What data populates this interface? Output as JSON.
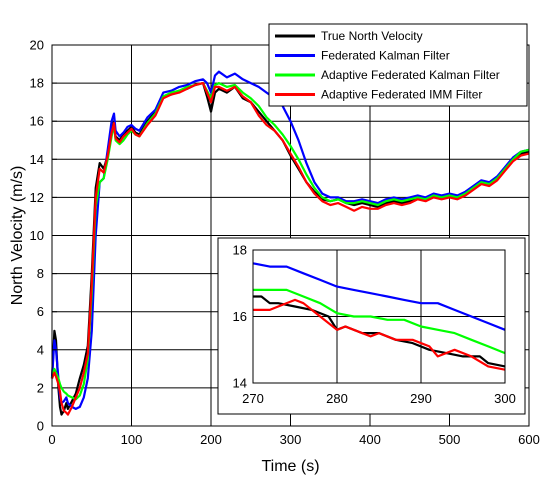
{
  "chart_data": {
    "type": "line",
    "xlabel": "Time (s)",
    "ylabel": "North Velocity (m/s)",
    "xlim": [
      0,
      600
    ],
    "ylim": [
      0,
      20
    ],
    "x_ticks": [
      "0",
      "100",
      "200",
      "300",
      "400",
      "500",
      "600"
    ],
    "y_ticks": [
      "0",
      "2",
      "4",
      "6",
      "8",
      "10",
      "12",
      "14",
      "16",
      "18",
      "20"
    ],
    "grid": true,
    "legend_position": "top-right",
    "series": [
      {
        "name": "True North Velocity",
        "color": "#000000",
        "x": [
          0,
          3,
          5,
          8,
          10,
          12,
          15,
          18,
          20,
          25,
          30,
          35,
          40,
          45,
          50,
          55,
          60,
          65,
          70,
          75,
          78,
          80,
          85,
          90,
          95,
          100,
          105,
          110,
          120,
          130,
          140,
          150,
          160,
          170,
          180,
          190,
          195,
          200,
          205,
          210,
          220,
          230,
          240,
          250,
          260,
          270,
          280,
          290,
          300,
          310,
          320,
          330,
          340,
          350,
          360,
          370,
          380,
          390,
          400,
          410,
          420,
          430,
          440,
          450,
          460,
          470,
          480,
          490,
          500,
          510,
          520,
          530,
          540,
          550,
          560,
          570,
          580,
          590,
          600
        ],
        "y": [
          2.5,
          5.0,
          4.5,
          2.0,
          1.0,
          0.6,
          0.8,
          1.2,
          0.9,
          1.3,
          1.7,
          2.5,
          3.2,
          4.2,
          8.0,
          12.5,
          13.8,
          13.5,
          14.2,
          15.5,
          16.0,
          15.2,
          15.0,
          15.3,
          15.5,
          15.7,
          15.4,
          15.3,
          16.0,
          16.5,
          17.3,
          17.4,
          17.6,
          17.7,
          17.9,
          18.0,
          17.3,
          16.5,
          17.5,
          17.7,
          17.5,
          17.8,
          17.2,
          17.0,
          16.5,
          16.0,
          15.5,
          15.0,
          14.2,
          13.5,
          12.8,
          12.3,
          11.9,
          11.8,
          11.9,
          11.7,
          11.6,
          11.7,
          11.6,
          11.5,
          11.7,
          11.8,
          11.7,
          11.8,
          12.0,
          11.9,
          12.1,
          12.0,
          12.1,
          12.0,
          12.2,
          12.5,
          12.8,
          12.7,
          13.0,
          13.5,
          14.0,
          14.3,
          14.4
        ]
      },
      {
        "name": "Federated Kalman Filter",
        "color": "#0000ff",
        "x": [
          0,
          3,
          5,
          8,
          10,
          12,
          15,
          18,
          20,
          25,
          30,
          35,
          40,
          45,
          50,
          55,
          60,
          65,
          70,
          75,
          78,
          80,
          85,
          90,
          95,
          100,
          105,
          110,
          120,
          130,
          140,
          150,
          160,
          170,
          180,
          190,
          195,
          200,
          205,
          210,
          220,
          230,
          240,
          250,
          260,
          270,
          280,
          290,
          300,
          310,
          320,
          330,
          340,
          350,
          360,
          370,
          380,
          390,
          400,
          410,
          420,
          430,
          440,
          450,
          460,
          470,
          480,
          490,
          500,
          510,
          520,
          530,
          540,
          550,
          560,
          570,
          580,
          590,
          600
        ],
        "y": [
          2.5,
          4.5,
          4.0,
          2.5,
          1.5,
          1.2,
          1.3,
          1.5,
          1.2,
          1.0,
          0.9,
          1.0,
          1.5,
          2.5,
          5.0,
          10.0,
          12.8,
          13.0,
          14.5,
          16.0,
          16.4,
          15.5,
          15.2,
          15.4,
          15.7,
          15.8,
          15.6,
          15.5,
          16.2,
          16.6,
          17.5,
          17.6,
          17.8,
          17.9,
          18.1,
          18.2,
          18.0,
          17.5,
          18.4,
          18.6,
          18.3,
          18.5,
          18.2,
          18.0,
          17.8,
          17.5,
          17.2,
          16.8,
          16.0,
          15.0,
          13.8,
          12.8,
          12.2,
          12.0,
          12.0,
          11.8,
          11.8,
          11.9,
          11.8,
          11.7,
          11.9,
          12.0,
          11.9,
          12.0,
          12.1,
          12.0,
          12.2,
          12.1,
          12.2,
          12.1,
          12.3,
          12.6,
          12.9,
          12.8,
          13.1,
          13.6,
          14.1,
          14.4,
          14.5
        ]
      },
      {
        "name": "Adaptive Federated Kalman Filter",
        "color": "#00ff00",
        "x": [
          0,
          3,
          5,
          8,
          10,
          12,
          15,
          18,
          20,
          25,
          30,
          35,
          40,
          45,
          50,
          55,
          60,
          65,
          70,
          75,
          78,
          80,
          85,
          90,
          95,
          100,
          105,
          110,
          120,
          130,
          140,
          150,
          160,
          170,
          180,
          190,
          195,
          200,
          205,
          210,
          220,
          230,
          240,
          250,
          260,
          270,
          280,
          290,
          300,
          310,
          320,
          330,
          340,
          350,
          360,
          370,
          380,
          390,
          400,
          410,
          420,
          430,
          440,
          450,
          460,
          470,
          480,
          490,
          500,
          510,
          520,
          530,
          540,
          550,
          560,
          570,
          580,
          590,
          600
        ],
        "y": [
          2.5,
          3.0,
          2.8,
          2.5,
          2.2,
          2.0,
          1.8,
          1.7,
          1.6,
          1.5,
          1.4,
          1.6,
          2.2,
          3.5,
          7.0,
          11.5,
          12.8,
          13.0,
          14.0,
          15.2,
          15.8,
          15.0,
          14.8,
          15.0,
          15.3,
          15.5,
          15.3,
          15.2,
          15.9,
          16.4,
          17.3,
          17.5,
          17.6,
          17.8,
          17.9,
          18.0,
          17.6,
          17.2,
          17.9,
          18.0,
          17.8,
          17.9,
          17.5,
          17.2,
          16.8,
          16.2,
          15.8,
          15.3,
          14.7,
          14.0,
          13.2,
          12.5,
          12.0,
          11.8,
          11.9,
          11.7,
          11.7,
          11.8,
          11.7,
          11.6,
          11.8,
          11.9,
          11.8,
          11.9,
          12.0,
          11.9,
          12.1,
          12.0,
          12.1,
          12.0,
          12.2,
          12.5,
          12.8,
          12.7,
          13.0,
          13.5,
          14.0,
          14.4,
          14.5
        ]
      },
      {
        "name": "Adaptive Federated IMM Filter",
        "color": "#ff0000",
        "x": [
          0,
          3,
          5,
          8,
          10,
          12,
          15,
          18,
          20,
          25,
          30,
          35,
          40,
          45,
          50,
          55,
          60,
          65,
          70,
          75,
          78,
          80,
          85,
          90,
          95,
          100,
          105,
          110,
          120,
          130,
          140,
          150,
          160,
          170,
          180,
          190,
          195,
          200,
          205,
          210,
          220,
          230,
          240,
          250,
          260,
          270,
          280,
          290,
          300,
          310,
          320,
          330,
          340,
          350,
          360,
          370,
          380,
          390,
          400,
          410,
          420,
          430,
          440,
          450,
          460,
          470,
          480,
          490,
          500,
          510,
          520,
          530,
          540,
          550,
          560,
          570,
          580,
          590,
          600
        ],
        "y": [
          2.5,
          2.8,
          2.6,
          2.2,
          1.8,
          1.2,
          0.8,
          0.7,
          0.6,
          1.0,
          1.5,
          2.0,
          2.8,
          3.8,
          7.5,
          12.0,
          13.5,
          13.3,
          14.2,
          15.4,
          15.9,
          15.1,
          14.9,
          15.2,
          15.4,
          15.6,
          15.3,
          15.2,
          15.8,
          16.3,
          17.2,
          17.4,
          17.5,
          17.7,
          17.9,
          18.0,
          17.5,
          17.0,
          17.8,
          17.8,
          17.6,
          17.8,
          17.3,
          17.0,
          16.3,
          15.8,
          15.5,
          15.0,
          14.3,
          13.6,
          12.8,
          12.2,
          11.8,
          11.6,
          11.7,
          11.5,
          11.3,
          11.5,
          11.4,
          11.4,
          11.6,
          11.7,
          11.6,
          11.7,
          11.9,
          11.8,
          12.0,
          11.9,
          12.0,
          11.9,
          12.1,
          12.4,
          12.7,
          12.6,
          12.9,
          13.4,
          13.9,
          14.2,
          14.3
        ]
      }
    ],
    "inset": {
      "xlim": [
        270,
        300
      ],
      "ylim": [
        14,
        18
      ],
      "x_ticks": [
        "270",
        "280",
        "290",
        "300"
      ],
      "y_ticks": [
        "14",
        "16",
        "18"
      ],
      "series": [
        {
          "name": "True North Velocity",
          "color": "#000000",
          "x": [
            270,
            271,
            272,
            273,
            275,
            277,
            279,
            280,
            281,
            283,
            285,
            287,
            289,
            291,
            293,
            295,
            297,
            298,
            300
          ],
          "y": [
            16.6,
            16.6,
            16.4,
            16.4,
            16.3,
            16.2,
            16.0,
            15.6,
            15.7,
            15.5,
            15.5,
            15.3,
            15.2,
            15.0,
            14.9,
            14.8,
            14.8,
            14.6,
            14.5
          ]
        },
        {
          "name": "Federated Kalman Filter",
          "color": "#0000ff",
          "x": [
            270,
            272,
            274,
            276,
            278,
            280,
            282,
            284,
            286,
            288,
            290,
            292,
            294,
            296,
            298,
            300
          ],
          "y": [
            17.6,
            17.5,
            17.5,
            17.3,
            17.1,
            16.9,
            16.8,
            16.7,
            16.6,
            16.5,
            16.4,
            16.4,
            16.2,
            16.0,
            15.8,
            15.6
          ]
        },
        {
          "name": "Adaptive Federated Kalman Filter",
          "color": "#00ff00",
          "x": [
            270,
            272,
            274,
            276,
            278,
            280,
            282,
            284,
            286,
            288,
            290,
            292,
            294,
            296,
            298,
            300
          ],
          "y": [
            16.8,
            16.8,
            16.8,
            16.6,
            16.4,
            16.1,
            16.0,
            16.0,
            15.9,
            15.9,
            15.7,
            15.6,
            15.5,
            15.3,
            15.1,
            14.9
          ]
        },
        {
          "name": "Adaptive Federated IMM Filter",
          "color": "#ff0000",
          "x": [
            270,
            272,
            273,
            275,
            276,
            278,
            280,
            281,
            282,
            284,
            285,
            287,
            289,
            291,
            292,
            294,
            296,
            298,
            300
          ],
          "y": [
            16.2,
            16.2,
            16.3,
            16.5,
            16.4,
            16.0,
            15.6,
            15.7,
            15.6,
            15.4,
            15.5,
            15.3,
            15.3,
            15.1,
            14.8,
            15.0,
            14.8,
            14.5,
            14.4
          ]
        }
      ]
    }
  }
}
